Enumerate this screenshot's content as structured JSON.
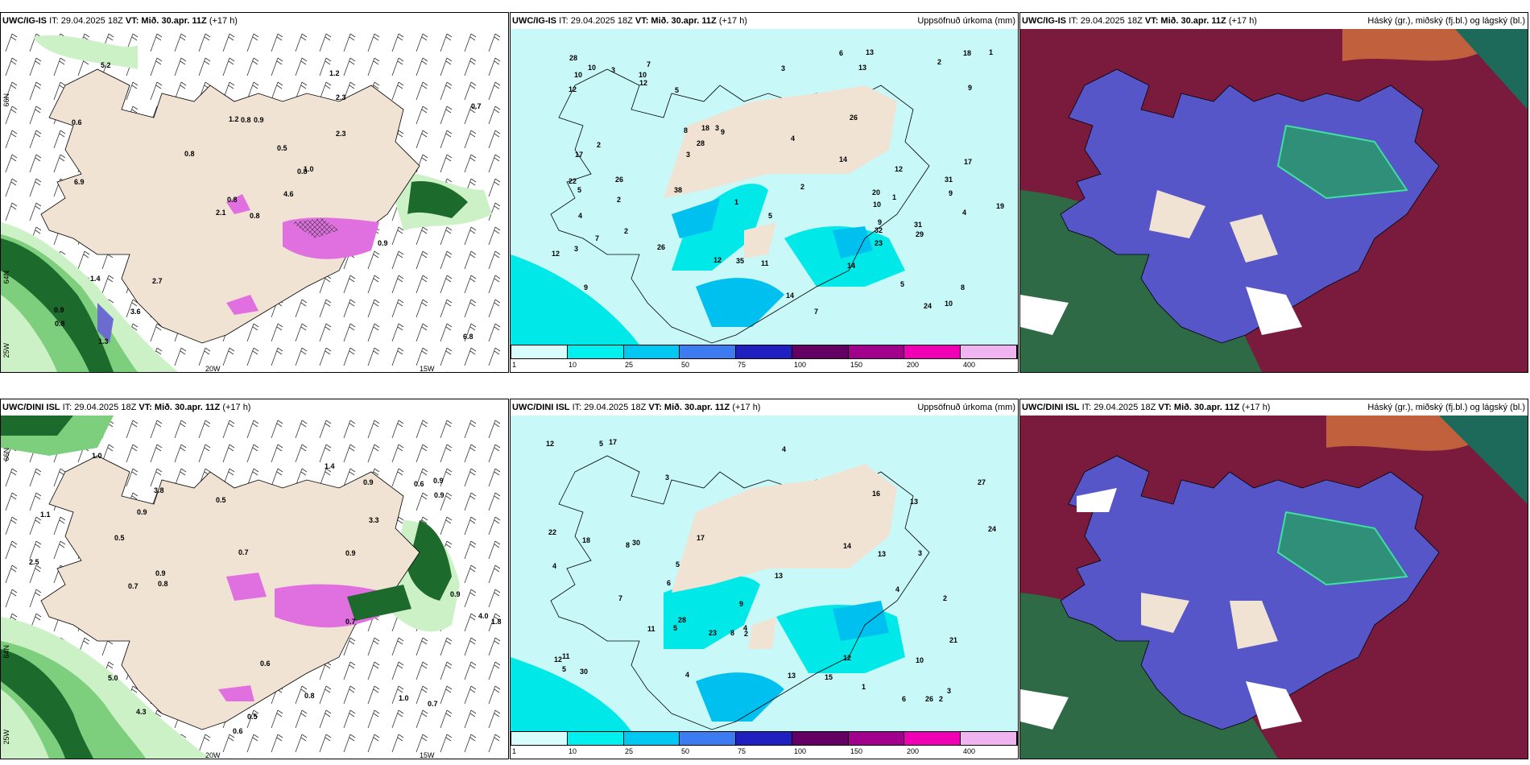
{
  "panels": {
    "p1": {
      "model": "UWC/IG-IS",
      "it": "IT: 29.04.2025 18Z",
      "vt_label": "VT:",
      "vt": "Mið. 30.apr. 11Z",
      "lead": "(+17 h)"
    },
    "p2": {
      "model": "UWC/IG-IS",
      "it": "IT: 29.04.2025 18Z",
      "vt_label": "VT:",
      "vt": "Mið. 30.apr. 11Z",
      "lead": "(+17 h)",
      "right_label": "Uppsöfnuð úrkoma (mm)"
    },
    "p3": {
      "model": "UWC/IG-IS",
      "it": "IT: 29.04.2025 18Z",
      "vt_label": "VT:",
      "vt": "Mið. 30.apr. 11Z",
      "lead": "(+17 h)",
      "right_label": "Háský (gr.), miðský (fj.bl.) og lágský (bl.)"
    },
    "p4": {
      "model": "UWC/DINI ISL",
      "it": "IT: 29.04.2025 18Z",
      "vt_label": "VT:",
      "vt": "Mið. 30.apr. 11Z",
      "lead": "(+17 h)"
    },
    "p5": {
      "model": "UWC/DINI ISL",
      "it": "IT: 29.04.2025 18Z",
      "vt_label": "VT:",
      "vt": "Mið. 30.apr. 11Z",
      "lead": "(+17 h)",
      "right_label": "Uppsöfnuð úrkoma (mm)"
    },
    "p6": {
      "model": "UWC/DINI ISL",
      "it": "IT: 29.04.2025 18Z",
      "vt_label": "VT:",
      "vt": "Mið. 30.apr. 11Z",
      "lead": "(+17 h)",
      "right_label": "Háský (gr.), miðský (fj.bl.) og lágský (bl.)"
    }
  },
  "grid_labels": {
    "lat66": "66N",
    "lat64": "64N",
    "lon25": "25W",
    "lon20": "20W",
    "lon15": "15W"
  },
  "colorbar": {
    "ticks": [
      "1",
      "10",
      "25",
      "50",
      "75",
      "100",
      "150",
      "200",
      "400"
    ],
    "colors": [
      "#d9fdfd",
      "#00f0f0",
      "#00c8f0",
      "#3c7cf0",
      "#2020c0",
      "#640064",
      "#a0008c",
      "#f000b4",
      "#f0b4f0"
    ]
  },
  "colors": {
    "land": "#f1e3d4",
    "precip_light": "#c8f8f8",
    "precip_mid": "#00e8e8",
    "precip_high": "#00c0f0",
    "green1": "#cdf1c7",
    "green2": "#7dcf7d",
    "green3": "#1c6b2c",
    "snow_pink": "#e070e0"
  },
  "numbers": {
    "p1": [
      "0.8",
      "0.6",
      "0.8",
      "0.9",
      "0.8",
      "2.7",
      "1.2",
      "0.9",
      "2.3",
      "4.6",
      "5.2",
      "6.8",
      "6.9",
      "0.7",
      "2.1",
      "2.3",
      "1.3",
      "1.2",
      "0.5",
      "1.4",
      "0.8",
      "0.8",
      "3.6",
      "0.8",
      "1.0",
      "0.9"
    ],
    "p2": [
      "10",
      "9",
      "9",
      "7",
      "9",
      "5",
      "3",
      "13",
      "8",
      "7",
      "12",
      "22",
      "10",
      "8",
      "12",
      "17",
      "5",
      "2",
      "3",
      "2",
      "1",
      "2",
      "3",
      "4",
      "6",
      "10",
      "9",
      "5",
      "12",
      "12",
      "14",
      "14",
      "28",
      "38",
      "31",
      "29",
      "32",
      "26",
      "11",
      "7",
      "9",
      "13",
      "10",
      "35",
      "31",
      "26",
      "12",
      "10",
      "14",
      "17",
      "19",
      "18",
      "18",
      "20",
      "23",
      "24",
      "26",
      "28",
      "2",
      "3",
      "1",
      "5",
      "4",
      "4",
      "3",
      "2",
      "1"
    ],
    "p4": [
      "1.1",
      "0.9",
      "0.9",
      "0.5",
      "0.6",
      "0.6",
      "0.7",
      "0.8",
      "0.9",
      "1.8",
      "4.0",
      "3.8",
      "3.3",
      "5.0",
      "2.5",
      "4.3",
      "0.9",
      "0.5",
      "0.7",
      "0.8",
      "1.0",
      "0.9",
      "0.7",
      "0.6",
      "0.9",
      "0.5",
      "0.9",
      "1.4",
      "1.0",
      "0.7"
    ],
    "p5": [
      "9",
      "8",
      "5",
      "4",
      "2",
      "3",
      "8",
      "6",
      "5",
      "13",
      "3",
      "4",
      "12",
      "6",
      "5",
      "12",
      "13",
      "24",
      "27",
      "17",
      "26",
      "30",
      "15",
      "11",
      "10",
      "14",
      "13",
      "11",
      "13",
      "12",
      "28",
      "23",
      "30",
      "21",
      "16",
      "22",
      "18",
      "17",
      "7",
      "4",
      "4",
      "3",
      "2",
      "1",
      "2",
      "5",
      "4"
    ]
  }
}
